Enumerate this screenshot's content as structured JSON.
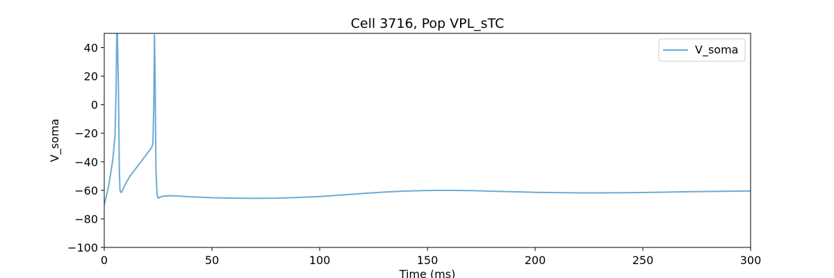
{
  "chart_data": {
    "type": "line",
    "title": "Cell 3716, Pop VPL_sTC",
    "xlabel": "Time (ms)",
    "ylabel": "V_soma",
    "xlim": [
      0,
      300
    ],
    "ylim": [
      -100,
      50
    ],
    "x_ticks": [
      0,
      50,
      100,
      150,
      200,
      250,
      300
    ],
    "y_ticks": [
      -100,
      -80,
      -60,
      -40,
      -20,
      0,
      20,
      40
    ],
    "grid": false,
    "legend": {
      "position": "top-right",
      "entries": [
        "V_soma"
      ]
    },
    "series": [
      {
        "name": "V_soma",
        "color": "#6aaad6",
        "x": [
          0,
          1,
          2,
          3,
          4,
          5,
          5.5,
          5.8,
          6.1,
          6.6,
          7.0,
          7.3,
          7.8,
          8.5,
          10,
          12,
          15,
          18,
          20,
          22,
          22.6,
          23.0,
          23.3,
          23.6,
          24.0,
          24.5,
          25.0,
          25.5,
          27,
          30,
          35,
          40,
          50,
          60,
          70,
          80,
          90,
          100,
          110,
          120,
          130,
          140,
          150,
          160,
          170,
          180,
          190,
          200,
          210,
          220,
          230,
          240,
          250,
          260,
          270,
          280,
          290,
          300
        ],
        "y": [
          -70,
          -64,
          -57,
          -48,
          -38,
          -22,
          10,
          50,
          50,
          10,
          -45,
          -60,
          -61.5,
          -60,
          -55,
          -50,
          -44,
          -38,
          -34,
          -30,
          -27,
          0,
          49,
          20,
          -45,
          -63,
          -65.5,
          -65,
          -64.2,
          -63.8,
          -64,
          -64.5,
          -65.2,
          -65.5,
          -65.6,
          -65.5,
          -65,
          -64.3,
          -63.3,
          -62.2,
          -61.2,
          -60.5,
          -60.1,
          -60,
          -60.2,
          -60.6,
          -61,
          -61.4,
          -61.6,
          -61.8,
          -61.8,
          -61.7,
          -61.5,
          -61.3,
          -61,
          -60.8,
          -60.6,
          -60.4
        ]
      }
    ]
  }
}
